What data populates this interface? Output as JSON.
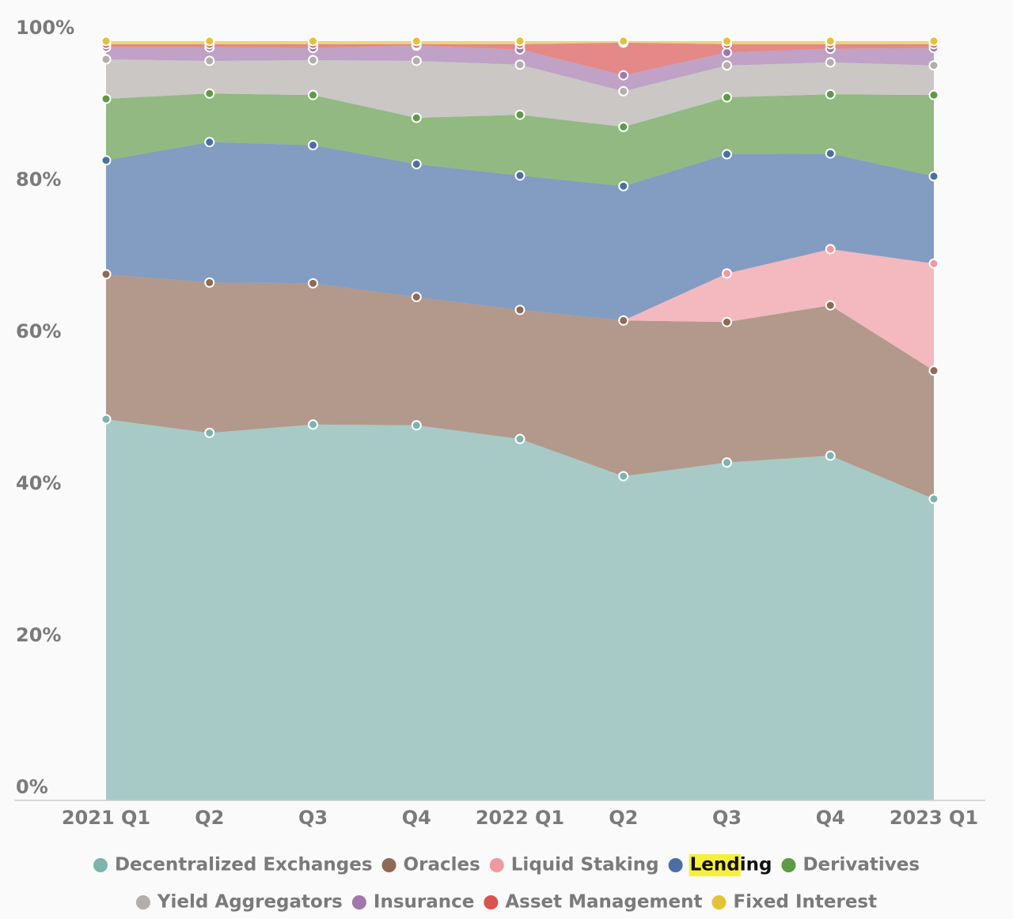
{
  "chart_data": {
    "type": "stacked-area",
    "categories": [
      "2021 Q1",
      "Q2",
      "Q3",
      "Q4",
      "2022 Q1",
      "Q2",
      "Q3",
      "Q4",
      "2023 Q1"
    ],
    "ylim": [
      0,
      100
    ],
    "yticks": [
      {
        "value": 0,
        "label": "0%"
      },
      {
        "value": 20,
        "label": "20%"
      },
      {
        "value": 40,
        "label": "40%"
      },
      {
        "value": 60,
        "label": "60%"
      },
      {
        "value": 80,
        "label": "80%"
      },
      {
        "value": 100,
        "label": "100%"
      }
    ],
    "series": [
      {
        "name": "Decentralized Exchanges",
        "color": "#7fb3ad",
        "values": [
          50.2,
          48.4,
          49.5,
          49.4,
          47.6,
          42.7,
          44.5,
          45.4,
          39.7
        ]
      },
      {
        "name": "Oracles",
        "color": "#8f6a55",
        "values": [
          19.1,
          19.8,
          18.6,
          16.9,
          17.0,
          20.5,
          18.5,
          19.8,
          16.9
        ]
      },
      {
        "name": "Liquid Staking",
        "color": "#ef9aa1",
        "values": [
          0,
          0,
          0,
          0,
          0,
          0,
          6.4,
          7.4,
          14.1
        ]
      },
      {
        "name": "Lending",
        "color": "#4a6fa5",
        "values": [
          15.0,
          18.5,
          18.2,
          17.5,
          17.7,
          17.7,
          15.7,
          12.6,
          11.5
        ]
      },
      {
        "name": "Derivatives",
        "color": "#5f9a47",
        "values": [
          8.1,
          6.4,
          6.6,
          6.1,
          8.0,
          7.8,
          7.5,
          7.8,
          10.7
        ]
      },
      {
        "name": "Yield Aggregators",
        "color": "#b3aeab",
        "values": [
          5.2,
          4.3,
          4.6,
          7.5,
          6.6,
          4.7,
          4.2,
          4.2,
          3.9
        ]
      },
      {
        "name": "Insurance",
        "color": "#a277ad",
        "values": [
          1.6,
          1.8,
          1.6,
          2.0,
          2.0,
          2.1,
          1.7,
          1.8,
          2.3
        ]
      },
      {
        "name": "Asset Management",
        "color": "#d9534f",
        "values": [
          0.4,
          0.4,
          0.5,
          0.2,
          0.7,
          4.3,
          1.1,
          0.6,
          0.5
        ]
      },
      {
        "name": "Fixed Interest",
        "color": "#e3c23a",
        "values": [
          0.4,
          0.4,
          0.4,
          0.4,
          0.4,
          0.2,
          0.4,
          0.4,
          0.4
        ]
      }
    ]
  }
}
